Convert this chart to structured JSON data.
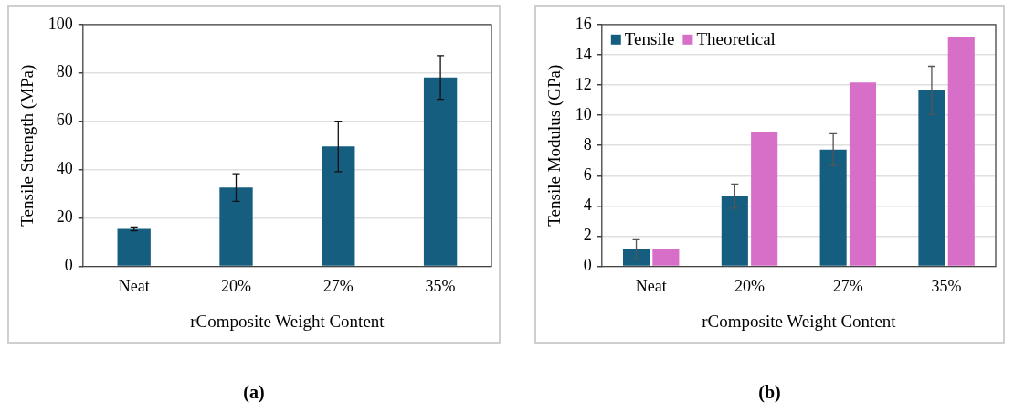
{
  "chart_data": [
    {
      "type": "bar",
      "xlabel": "rComposite Weight Content",
      "ylabel": "Tensile Strength (MPa)",
      "categories": [
        "Neat",
        "20%",
        "27%",
        "35%"
      ],
      "values": [
        15.5,
        32.6,
        49.6,
        78.1
      ],
      "errors": [
        0.8,
        5.7,
        10.4,
        9
      ],
      "color": "#165e80",
      "ylim": [
        0,
        100
      ],
      "yticks": [
        0,
        20,
        40,
        60,
        80,
        100
      ],
      "grid": "y",
      "legend": false,
      "annotations": [
        "(a)"
      ]
    },
    {
      "type": "bar",
      "xlabel": "rComposite Weight Content",
      "ylabel": "Tensile Modulus (GPa)",
      "categories": [
        "Neat",
        "20%",
        "27%",
        "35%"
      ],
      "series": [
        {
          "name": "Tensile",
          "color": "#165e80",
          "values": [
            1.12,
            4.65,
            7.72,
            11.64
          ],
          "errors": [
            0.65,
            0.8,
            1.05,
            1.6
          ]
        },
        {
          "name": "Theoretical",
          "color": "#d76ec8",
          "values": [
            1.18,
            8.88,
            12.16,
            15.2
          ]
        }
      ],
      "ylim": [
        0,
        16
      ],
      "yticks": [
        0,
        2,
        4,
        6,
        8,
        10,
        12,
        14,
        16
      ],
      "grid": "y",
      "legend": "top left",
      "annotations": [
        "(b)"
      ]
    }
  ]
}
